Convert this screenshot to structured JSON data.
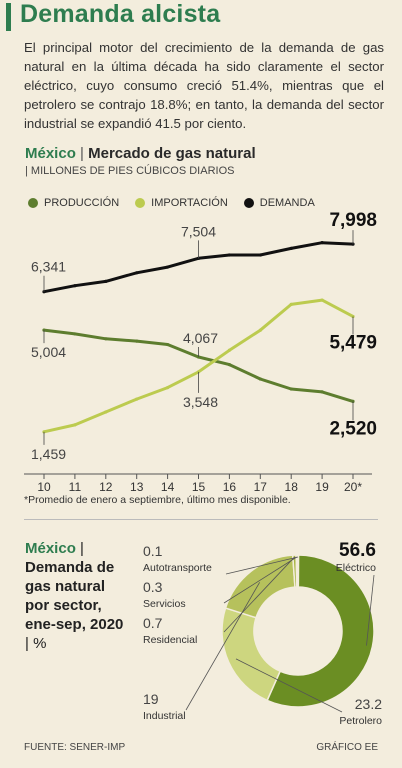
{
  "header": {
    "title": "Demanda alcista",
    "intro": "El principal motor del crecimiento de la demanda de gas natural en la última década ha sido claramente el sector eléctrico, cuyo consumo creció 51.4%, mientras que el petrolero se contrajo 18.8%; en tanto, la demanda del sector industrial se expandió 41.5 por ciento."
  },
  "line_section": {
    "country": "México",
    "title": "Mercado de gas natural",
    "units": "MILLONES DE PIES CÚBICOS DIARIOS",
    "footnote": "*Promedio de enero a septiembre, último mes disponible."
  },
  "pie_section": {
    "country": "México",
    "title": "Demanda de gas natural por sector, ene-sep, 2020",
    "unit": "%"
  },
  "footer": {
    "source": "FUENTE: SENER-IMP",
    "credit": "GRÁFICO EE"
  },
  "colors": {
    "produccion": "#5d7d2e",
    "importacion": "#bccb4f",
    "demanda": "#111111",
    "electrico": "#6b8e23",
    "petrolero": "#cdd67f",
    "industrial": "#b6c15c",
    "small": "#9aa93a",
    "accent": "#2e7d4f"
  },
  "chart_data": [
    {
      "type": "line",
      "x": [
        "10",
        "11",
        "12",
        "13",
        "14",
        "15",
        "16",
        "17",
        "18",
        "19",
        "20*"
      ],
      "series": [
        {
          "name": "PRODUCCIÓN",
          "values": [
            5004,
            4870,
            4700,
            4620,
            4500,
            4067,
            3800,
            3300,
            2950,
            2850,
            2520
          ]
        },
        {
          "name": "IMPORTACIÓN",
          "values": [
            1459,
            1700,
            2150,
            2600,
            3000,
            3548,
            4300,
            5000,
            5900,
            6050,
            5479
          ]
        },
        {
          "name": "DEMANDA",
          "values": [
            6341,
            6550,
            6700,
            7000,
            7200,
            7504,
            7620,
            7620,
            7850,
            8050,
            7998
          ]
        }
      ],
      "labels": [
        {
          "series": 2,
          "index": 0,
          "text": "6,341"
        },
        {
          "series": 2,
          "index": 5,
          "text": "7,504"
        },
        {
          "series": 2,
          "index": 10,
          "text": "7,998"
        },
        {
          "series": 0,
          "index": 0,
          "text": "5,004"
        },
        {
          "series": 0,
          "index": 5,
          "text": "4,067"
        },
        {
          "series": 0,
          "index": 10,
          "text": "2,520"
        },
        {
          "series": 1,
          "index": 0,
          "text": "1,459"
        },
        {
          "series": 1,
          "index": 5,
          "text": "3,548"
        },
        {
          "series": 1,
          "index": 10,
          "text": "5,479"
        }
      ],
      "ylim": [
        1000,
        8700
      ]
    },
    {
      "type": "pie",
      "slices": [
        {
          "label": "Eléctrico",
          "value": 56.6,
          "text": "56.6",
          "color": "#6b8e23"
        },
        {
          "label": "Petrolero",
          "value": 23.2,
          "text": "23.2",
          "color": "#cdd67f"
        },
        {
          "label": "Industrial",
          "value": 19,
          "text": "19",
          "color": "#b6c15c"
        },
        {
          "label": "Residencial",
          "value": 0.7,
          "text": "0.7",
          "color": "#9aa93a"
        },
        {
          "label": "Servicios",
          "value": 0.3,
          "text": "0.3",
          "color": "#7b8b2a"
        },
        {
          "label": "Autotransporte",
          "value": 0.1,
          "text": "0.1",
          "color": "#5d7d2e"
        }
      ]
    }
  ]
}
